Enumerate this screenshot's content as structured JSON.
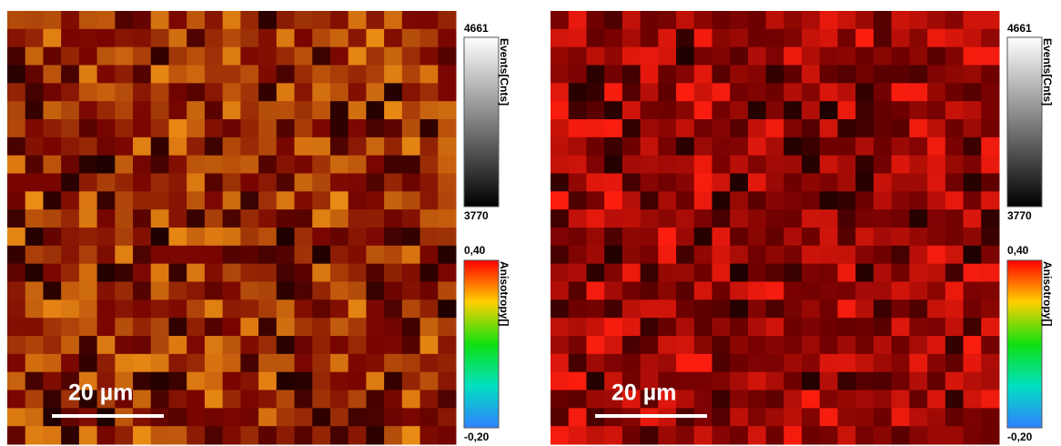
{
  "panels": [
    {
      "scale_bar": "20 µm",
      "intensity": {
        "title": "Events[Cnts]",
        "max": "4661",
        "min": "3770"
      },
      "anisotropy": {
        "title": "Anisotropy[]",
        "max": "0,40",
        "min": "-0,20"
      }
    },
    {
      "scale_bar": "20 µm",
      "intensity": {
        "title": "Events[Cnts]",
        "max": "4661",
        "min": "3770"
      },
      "anisotropy": {
        "title": "Anisotropy[]",
        "max": "0,40",
        "min": "-0,20"
      }
    }
  ]
}
